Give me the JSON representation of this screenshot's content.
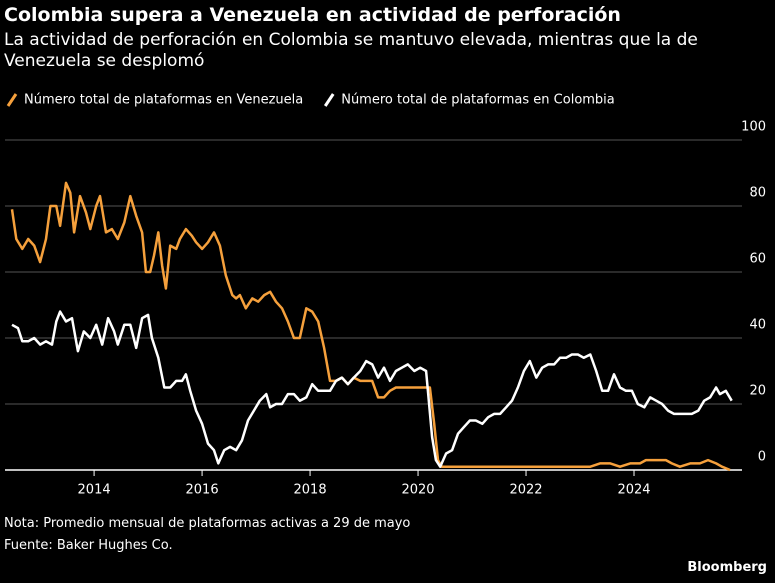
{
  "chart_data": {
    "type": "line",
    "title": "Colombia supera a Venezuela en actividad de perforación",
    "subtitle": "La actividad de perforación en Colombia se mantuvo elevada, mientras que la de Venezuela se desplomó",
    "note": "Nota: Promedio mensual de plataformas activas a 29 de mayo",
    "source": "Fuente: Baker Hughes Co.",
    "brand": "Bloomberg",
    "xlim": [
      2012.35,
      2026.0
    ],
    "xticks": [
      2014,
      2016,
      2018,
      2020,
      2022,
      2024
    ],
    "ylim": [
      0,
      100
    ],
    "yticks": [
      0,
      20,
      40,
      60,
      80,
      100
    ],
    "grid": true,
    "series": [
      {
        "name": "Número total de plataformas en Venezuela",
        "color": "#f5a03c",
        "x": [
          2012.48,
          2012.56,
          2012.67,
          2012.78,
          2012.89,
          2013.0,
          2013.11,
          2013.19,
          2013.3,
          2013.37,
          2013.48,
          2013.56,
          2013.63,
          2013.74,
          2013.85,
          2013.93,
          2014.04,
          2014.11,
          2014.22,
          2014.33,
          2014.44,
          2014.56,
          2014.67,
          2014.78,
          2014.89,
          2014.96,
          2015.04,
          2015.11,
          2015.19,
          2015.26,
          2015.33,
          2015.41,
          2015.52,
          2015.59,
          2015.7,
          2015.81,
          2015.89,
          2016.0,
          2016.11,
          2016.22,
          2016.33,
          2016.44,
          2016.56,
          2016.63,
          2016.7,
          2016.81,
          2016.93,
          2017.04,
          2017.15,
          2017.26,
          2017.37,
          2017.48,
          2017.59,
          2017.7,
          2017.81,
          2017.93,
          2018.04,
          2018.15,
          2018.26,
          2018.37,
          2018.48,
          2018.59,
          2018.7,
          2018.81,
          2018.93,
          2019.04,
          2019.15,
          2019.26,
          2019.37,
          2019.48,
          2019.59,
          2019.7,
          2019.81,
          2019.93,
          2020.07,
          2020.22,
          2020.3,
          2020.37,
          2020.44,
          2020.59,
          2023.19,
          2023.37,
          2023.56,
          2023.74,
          2023.93,
          2024.11,
          2024.22,
          2024.41,
          2024.59,
          2024.7,
          2024.85,
          2025.04,
          2025.22,
          2025.37,
          2025.52,
          2025.63,
          2025.78
        ],
        "values": [
          79,
          70,
          67,
          70,
          68,
          63,
          70,
          80,
          80,
          74,
          87,
          84,
          72,
          83,
          78,
          73,
          80,
          83,
          72,
          73,
          70,
          75,
          83,
          77,
          72,
          60,
          60,
          65,
          72,
          62,
          55,
          68,
          67,
          70,
          73,
          71,
          69,
          67,
          69,
          72,
          68,
          59,
          53,
          52,
          53,
          49,
          52,
          51,
          53,
          54,
          51,
          49,
          45,
          40,
          40,
          49,
          48,
          45,
          37,
          27,
          27,
          28,
          26,
          28,
          27,
          27,
          27,
          22,
          22,
          24,
          25,
          25,
          25,
          25,
          25,
          25,
          14,
          3,
          1,
          1,
          1,
          2,
          2,
          1,
          2,
          2,
          3,
          3,
          3,
          2,
          1,
          2,
          2,
          3,
          2,
          1,
          0
        ]
      },
      {
        "name": "Número total de plataformas en Colombia",
        "color": "#ffffff",
        "x": [
          2012.48,
          2012.59,
          2012.67,
          2012.78,
          2012.89,
          2013.0,
          2013.11,
          2013.22,
          2013.3,
          2013.37,
          2013.48,
          2013.59,
          2013.7,
          2013.81,
          2013.93,
          2014.04,
          2014.15,
          2014.26,
          2014.37,
          2014.44,
          2014.56,
          2014.67,
          2014.78,
          2014.89,
          2015.0,
          2015.07,
          2015.19,
          2015.3,
          2015.41,
          2015.52,
          2015.63,
          2015.7,
          2015.78,
          2015.89,
          2016.0,
          2016.11,
          2016.22,
          2016.3,
          2016.41,
          2016.52,
          2016.63,
          2016.74,
          2016.85,
          2016.96,
          2017.07,
          2017.19,
          2017.26,
          2017.37,
          2017.48,
          2017.59,
          2017.7,
          2017.81,
          2017.93,
          2018.04,
          2018.15,
          2018.26,
          2018.37,
          2018.48,
          2018.59,
          2018.7,
          2018.81,
          2018.93,
          2019.04,
          2019.15,
          2019.26,
          2019.37,
          2019.48,
          2019.59,
          2019.7,
          2019.81,
          2019.93,
          2020.04,
          2020.15,
          2020.26,
          2020.33,
          2020.41,
          2020.52,
          2020.63,
          2020.74,
          2020.85,
          2020.96,
          2021.07,
          2021.19,
          2021.3,
          2021.41,
          2021.52,
          2021.63,
          2021.74,
          2021.85,
          2021.96,
          2022.07,
          2022.19,
          2022.3,
          2022.41,
          2022.52,
          2022.63,
          2022.74,
          2022.85,
          2022.96,
          2023.07,
          2023.19,
          2023.3,
          2023.41,
          2023.52,
          2023.63,
          2023.74,
          2023.85,
          2023.96,
          2024.07,
          2024.19,
          2024.3,
          2024.41,
          2024.52,
          2024.63,
          2024.74,
          2024.85,
          2024.96,
          2025.07,
          2025.19,
          2025.3,
          2025.41,
          2025.52,
          2025.59,
          2025.7,
          2025.81
        ],
        "values": [
          44,
          43,
          39,
          39,
          40,
          38,
          39,
          38,
          45,
          48,
          45,
          46,
          36,
          42,
          40,
          44,
          38,
          46,
          42,
          38,
          44,
          44,
          37,
          46,
          47,
          40,
          34,
          25,
          25,
          27,
          27,
          29,
          24,
          18,
          14,
          8,
          6,
          2,
          6,
          7,
          6,
          9,
          15,
          18,
          21,
          23,
          19,
          20,
          20,
          23,
          23,
          21,
          22,
          26,
          24,
          24,
          24,
          27,
          28,
          26,
          28,
          30,
          33,
          32,
          28,
          31,
          27,
          30,
          31,
          32,
          30,
          31,
          30,
          10,
          3,
          1,
          5,
          6,
          11,
          13,
          15,
          15,
          14,
          16,
          17,
          17,
          19,
          21,
          25,
          30,
          33,
          28,
          31,
          32,
          32,
          34,
          34,
          35,
          35,
          34,
          35,
          30,
          24,
          24,
          29,
          25,
          24,
          24,
          20,
          19,
          22,
          21,
          20,
          18,
          17,
          17,
          17,
          17,
          18,
          21,
          22,
          25,
          23,
          24,
          21
        ]
      }
    ]
  }
}
